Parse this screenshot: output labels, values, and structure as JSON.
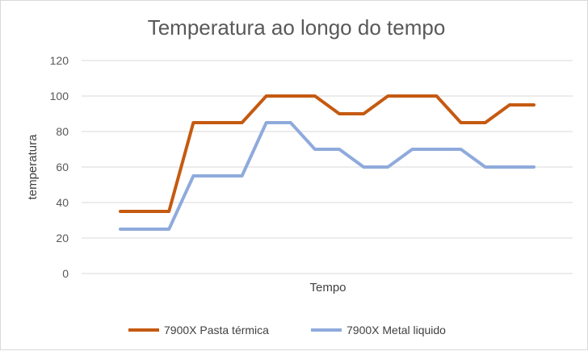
{
  "chart_data": {
    "type": "line",
    "title": "Temperatura ao longo do tempo",
    "xlabel": "Tempo",
    "ylabel": "temperatura",
    "ylim": [
      0,
      120
    ],
    "yticks": [
      0,
      20,
      40,
      60,
      80,
      100,
      120
    ],
    "grid": true,
    "legend": "bottom",
    "x": [
      1,
      2,
      3,
      4,
      5,
      6,
      7,
      8,
      9,
      10,
      11,
      12,
      13,
      14,
      15,
      16,
      17,
      18
    ],
    "series": [
      {
        "name": "7900X Pasta térmica",
        "color": "#C55A11",
        "values": [
          35,
          35,
          35,
          85,
          85,
          85,
          100,
          100,
          100,
          90,
          90,
          100,
          100,
          100,
          85,
          85,
          95,
          95
        ]
      },
      {
        "name": "7900X Metal liquido",
        "color": "#8FAADC",
        "values": [
          25,
          25,
          25,
          55,
          55,
          55,
          85,
          85,
          70,
          70,
          60,
          60,
          70,
          70,
          70,
          60,
          60,
          60
        ]
      }
    ]
  }
}
